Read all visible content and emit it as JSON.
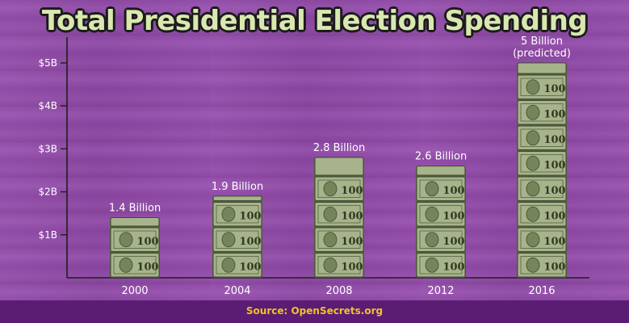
{
  "title": "Total Presidential Election Spending",
  "source": "Source: OpenSecrets.org",
  "colors": {
    "bill": "#a7b38a",
    "bill_dark": "#566441",
    "axis": "#1e1e1e",
    "label": "#ffffff",
    "source_text": "#f0c22a"
  },
  "chart_data": {
    "type": "bar",
    "title": "Total Presidential Election Spending",
    "categories": [
      "2000",
      "2004",
      "2008",
      "2012",
      "2016"
    ],
    "values": [
      1.4,
      1.9,
      2.8,
      2.6,
      5
    ],
    "data_labels": [
      "1.4 Billion",
      "1.9 Billion",
      "2.8 Billion",
      "2.6 Billion",
      "5 Billion\n(predicted)"
    ],
    "unit": "Billion USD",
    "ylim": [
      0,
      5.6
    ],
    "yticks": [
      1,
      2,
      3,
      4,
      5
    ],
    "ytick_labels": [
      "$1B",
      "$2B",
      "$3B",
      "$4B",
      "$5B"
    ],
    "xlabel": "",
    "ylabel": "",
    "grid": false,
    "bar_style": "stacked-dollar-bills"
  }
}
